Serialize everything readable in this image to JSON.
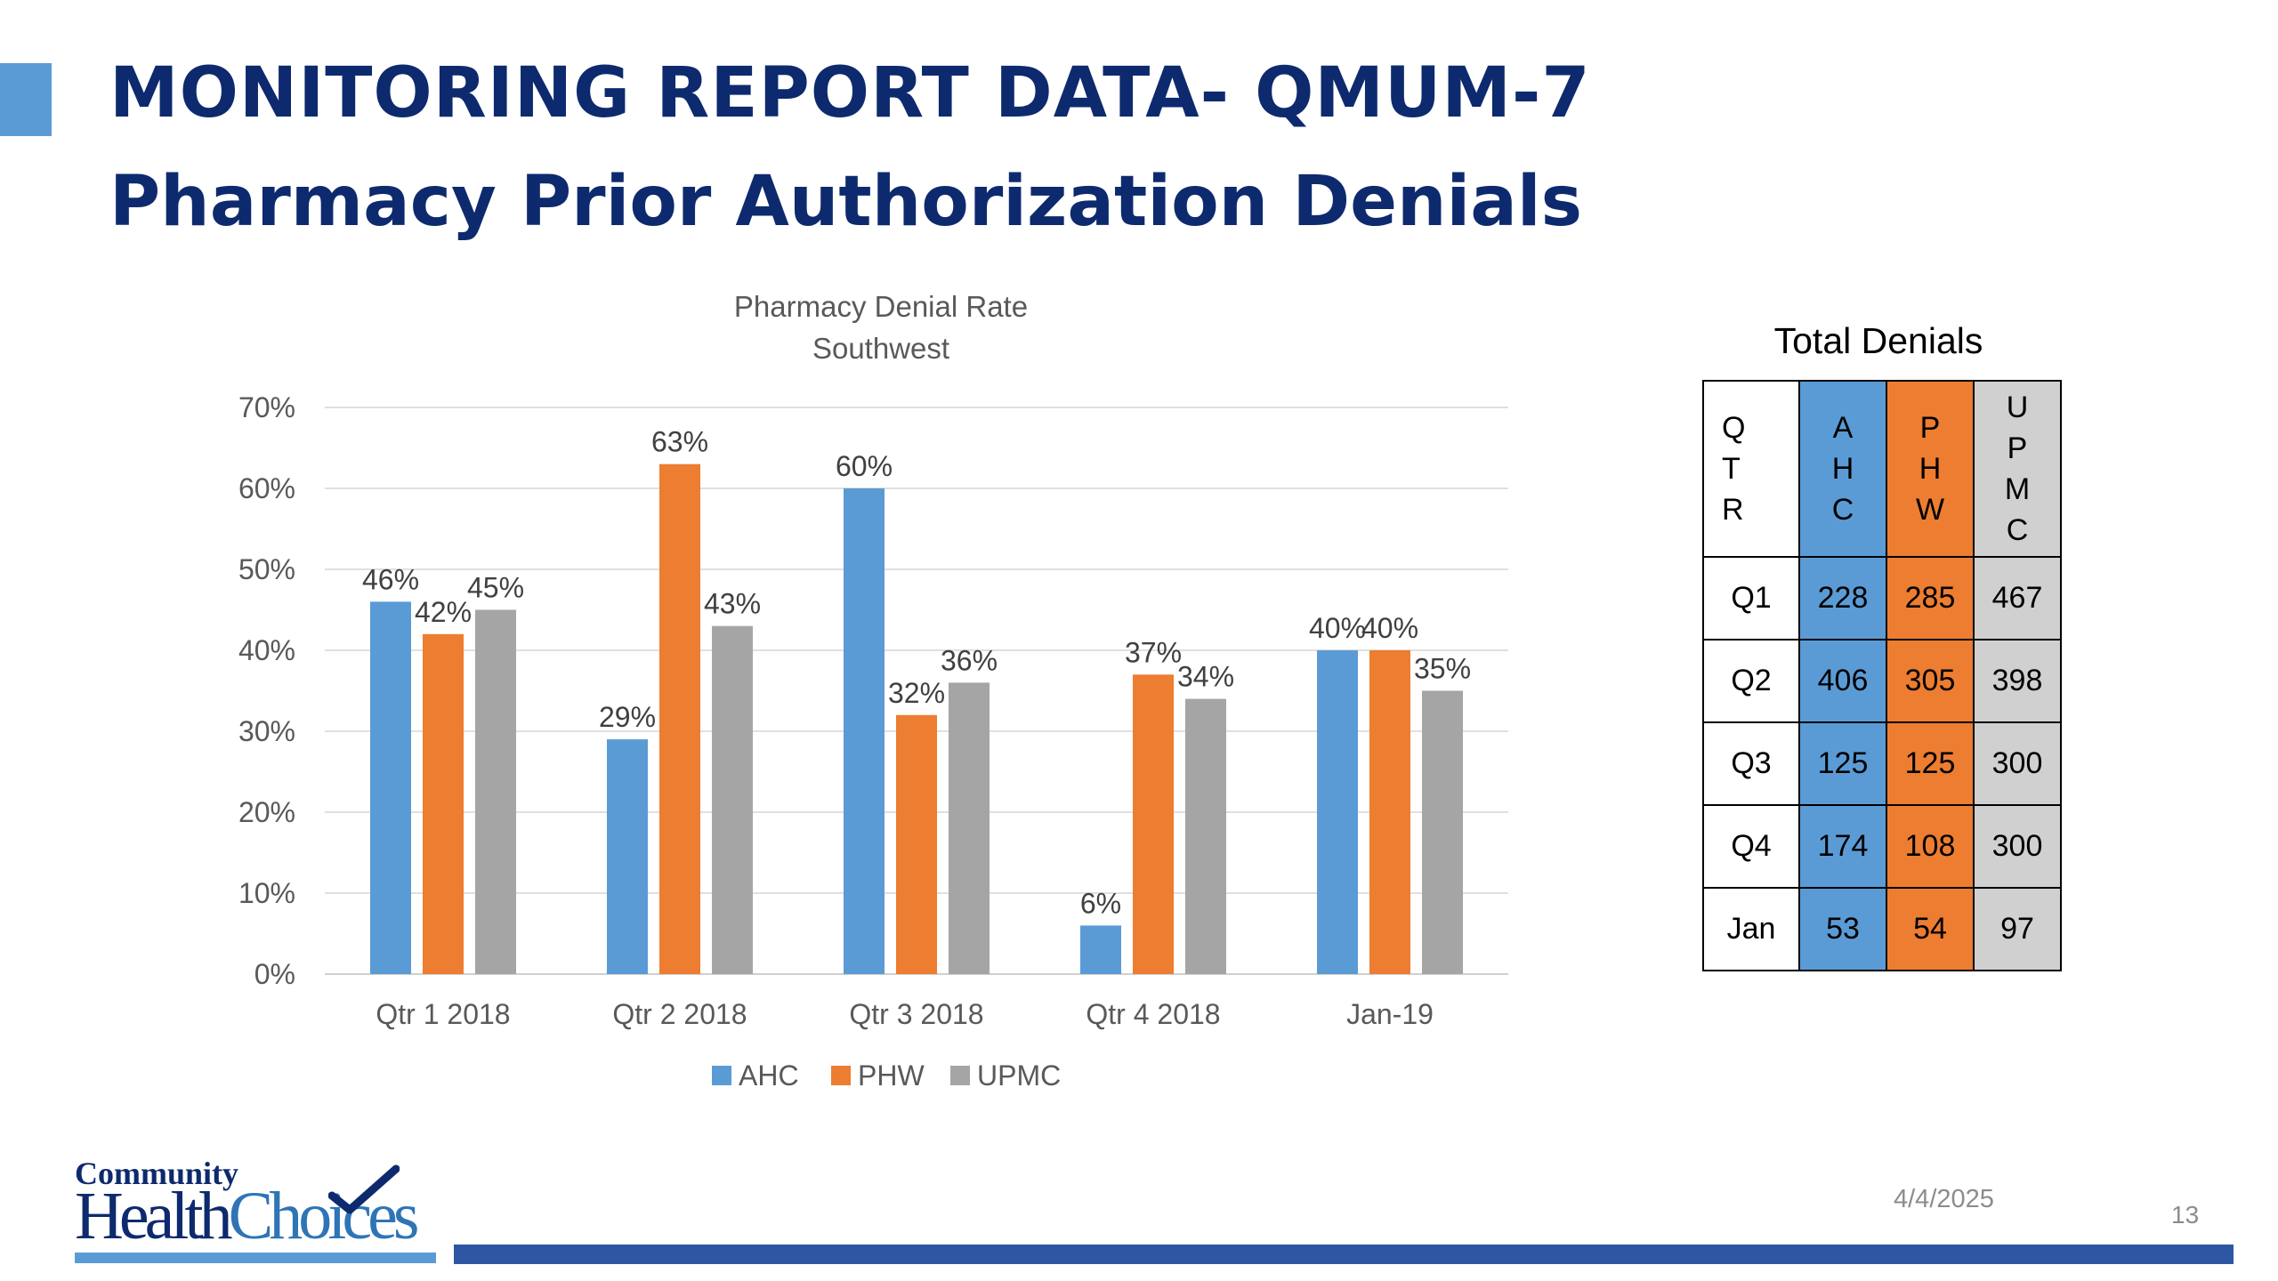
{
  "header": {
    "title_line1": "MONITORING REPORT DATA- QMUM-7",
    "title_line2": "Pharmacy Prior Authorization Denials"
  },
  "colors": {
    "AHC": "#5b9bd5",
    "PHW": "#ed7d31",
    "UPMC": "#a5a5a5",
    "title": "#0e2a6e",
    "accent": "#5b9bd5",
    "footer_bar": "#2f56a3"
  },
  "chart_data": [
    {
      "type": "bar",
      "title": "Pharmacy Denial Rate",
      "subtitle": "Southwest",
      "categories": [
        "Qtr 1 2018",
        "Qtr 2 2018",
        "Qtr 3 2018",
        "Qtr 4 2018",
        "Jan-19"
      ],
      "series": [
        {
          "name": "AHC",
          "values": [
            46,
            29,
            60,
            6,
            40
          ],
          "labels": [
            "46%",
            "29%",
            "60%",
            "6%",
            "40%"
          ]
        },
        {
          "name": "PHW",
          "values": [
            42,
            63,
            32,
            37,
            40
          ],
          "labels": [
            "42%",
            "63%",
            "32%",
            "37%",
            "40%"
          ]
        },
        {
          "name": "UPMC",
          "values": [
            45,
            43,
            36,
            34,
            35
          ],
          "labels": [
            "45%",
            "43%",
            "36%",
            "34%",
            "35%"
          ]
        }
      ],
      "ylim": [
        0,
        70
      ],
      "yticks": [
        "0%",
        "10%",
        "20%",
        "30%",
        "40%",
        "50%",
        "60%",
        "70%"
      ],
      "xlabel": "",
      "ylabel": "",
      "grid": true,
      "legend": "bottom"
    },
    {
      "type": "table",
      "title": "Total Denials",
      "headers": [
        "QTR",
        "AHC",
        "PHW",
        "UPMC"
      ],
      "rows": [
        [
          "Q1",
          "228",
          "285",
          "467"
        ],
        [
          "Q2",
          "406",
          "305",
          "398"
        ],
        [
          "Q3",
          "125",
          "125",
          "300"
        ],
        [
          "Q4",
          "174",
          "108",
          "300"
        ],
        [
          "Jan",
          "53",
          "54",
          "97"
        ]
      ]
    }
  ],
  "logo": {
    "top": "Community",
    "main_part1": "Health",
    "main_part2": "Choices"
  },
  "footer": {
    "date": "4/4/2025",
    "page": "13"
  }
}
